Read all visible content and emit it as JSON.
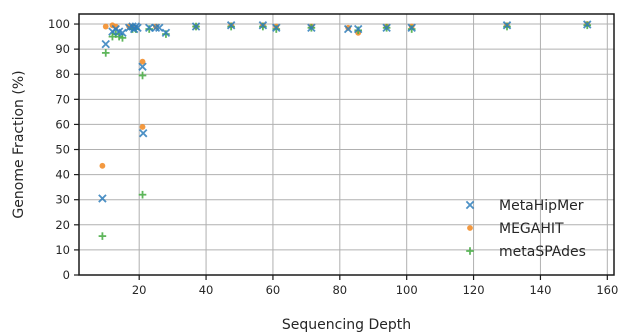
{
  "chart_data": {
    "type": "scatter",
    "title": "",
    "xlabel": "Sequencing Depth",
    "ylabel": "Genome Fraction (%)",
    "xlim": [
      2,
      162
    ],
    "ylim": [
      0,
      104
    ],
    "xticks": [
      20,
      40,
      60,
      80,
      100,
      120,
      140,
      160
    ],
    "yticks": [
      0,
      10,
      20,
      30,
      40,
      50,
      60,
      70,
      80,
      90,
      100
    ],
    "grid": true,
    "legend_position": "bottom-right",
    "series": [
      {
        "name": "MetaHipMer",
        "marker": "x",
        "color": "#2f7ebc",
        "points": [
          [
            9,
            30.5
          ],
          [
            10,
            92
          ],
          [
            12,
            97
          ],
          [
            13,
            98
          ],
          [
            14,
            97
          ],
          [
            15,
            96.5
          ],
          [
            17,
            98.5
          ],
          [
            18,
            99
          ],
          [
            18.5,
            98
          ],
          [
            19,
            99
          ],
          [
            19.5,
            98.5
          ],
          [
            21,
            83
          ],
          [
            21.2,
            56.5
          ],
          [
            23,
            98.5
          ],
          [
            25,
            98.5
          ],
          [
            26,
            98.5
          ],
          [
            28,
            96.5
          ],
          [
            37,
            99
          ],
          [
            47.5,
            99.5
          ],
          [
            57,
            99.5
          ],
          [
            61,
            98.5
          ],
          [
            71.5,
            98.5
          ],
          [
            82.5,
            98
          ],
          [
            85.5,
            98
          ],
          [
            94,
            98.5
          ],
          [
            101.5,
            98.5
          ],
          [
            130,
            99.5
          ],
          [
            154,
            99.8
          ]
        ]
      },
      {
        "name": "MEGAHIT",
        "marker": "circle",
        "color": "#f28e2b",
        "points": [
          [
            9,
            43.5
          ],
          [
            10,
            99
          ],
          [
            12,
            99.5
          ],
          [
            13,
            99
          ],
          [
            17,
            99
          ],
          [
            18,
            99
          ],
          [
            21,
            85
          ],
          [
            21,
            59
          ],
          [
            25,
            99
          ],
          [
            37,
            99
          ],
          [
            47.5,
            99.5
          ],
          [
            57,
            99.5
          ],
          [
            61,
            99
          ],
          [
            71.5,
            99
          ],
          [
            82.5,
            98.5
          ],
          [
            85.5,
            96.5
          ],
          [
            94,
            99
          ],
          [
            101.5,
            99
          ],
          [
            130,
            99.5
          ],
          [
            154,
            100
          ]
        ]
      },
      {
        "name": "metaSPAdes",
        "marker": "plus",
        "color": "#4daf4a",
        "points": [
          [
            9,
            15.5
          ],
          [
            10,
            88.5
          ],
          [
            12,
            95
          ],
          [
            13,
            96
          ],
          [
            14,
            95
          ],
          [
            15,
            94.5
          ],
          [
            18,
            98
          ],
          [
            19,
            98
          ],
          [
            21,
            79.5
          ],
          [
            21,
            32
          ],
          [
            23,
            98
          ],
          [
            28,
            96
          ],
          [
            37,
            99
          ],
          [
            47.5,
            99
          ],
          [
            57,
            99
          ],
          [
            61,
            98
          ],
          [
            71.5,
            98.5
          ],
          [
            85.5,
            97.5
          ],
          [
            94,
            98.5
          ],
          [
            101.5,
            98
          ],
          [
            130,
            99
          ],
          [
            154,
            99.5
          ]
        ]
      }
    ]
  }
}
